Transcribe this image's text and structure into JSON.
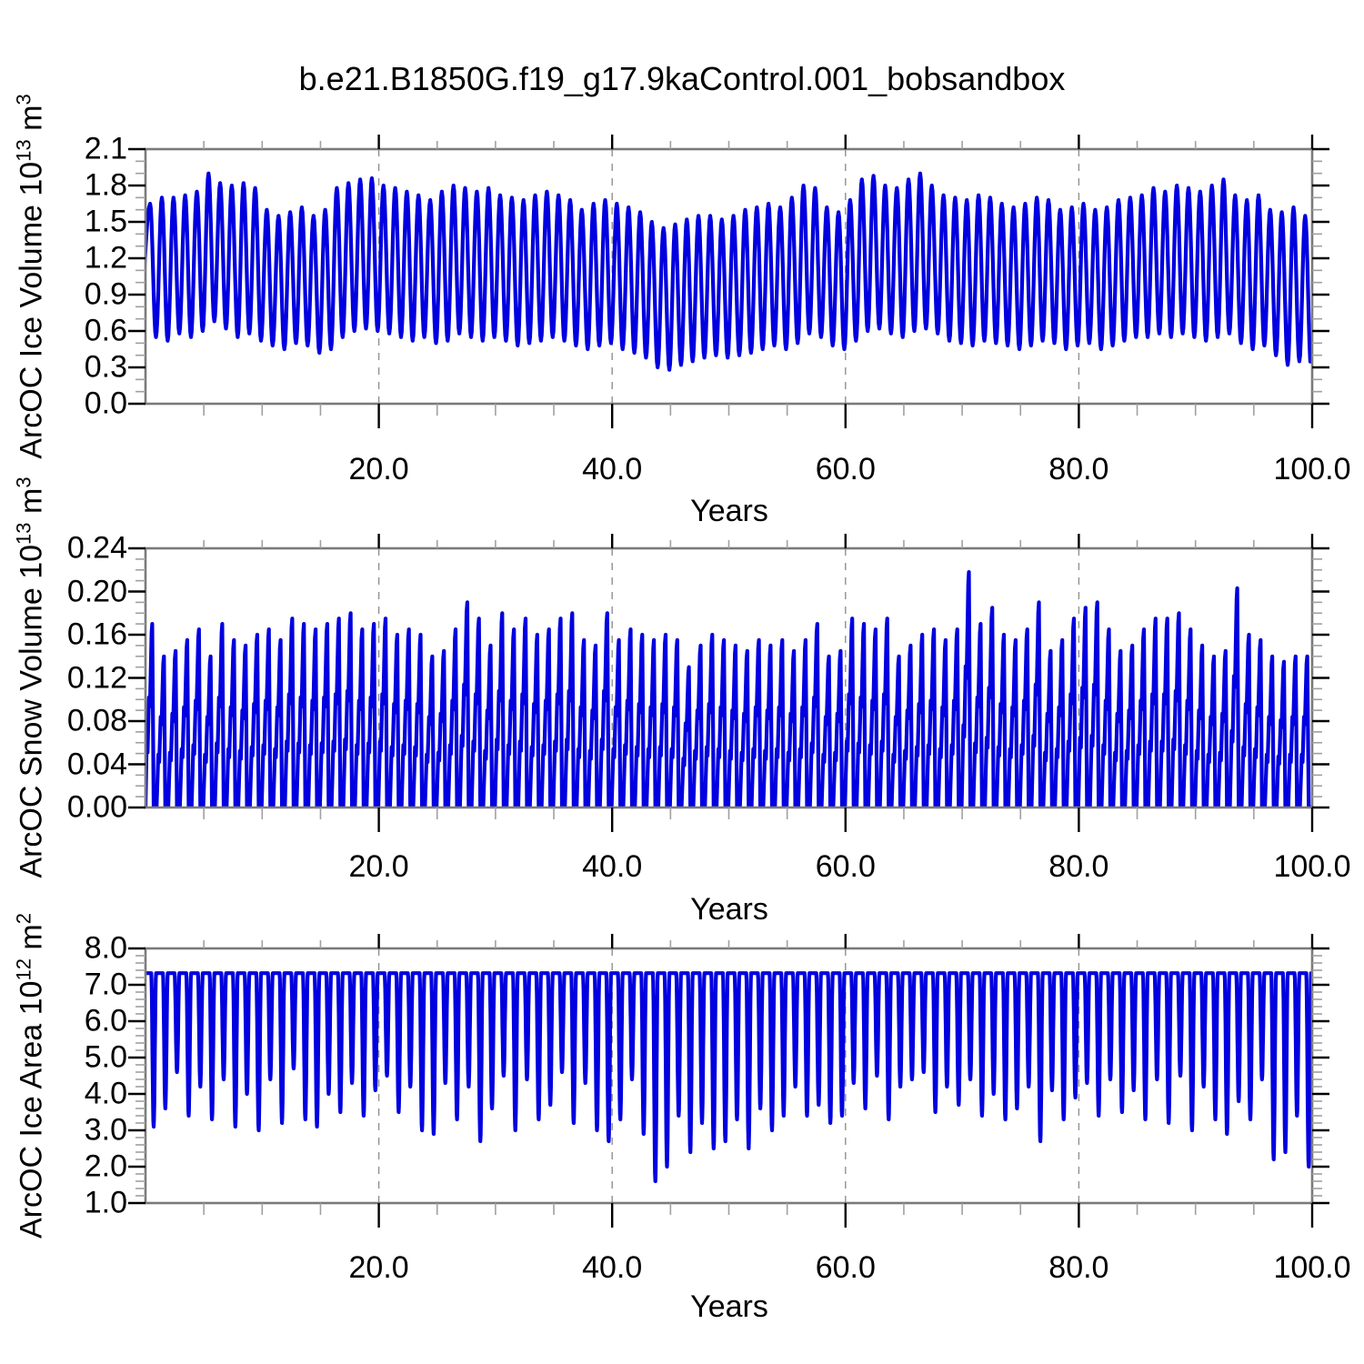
{
  "title": "b.e21.B1850G.f19_g17.9kaControl.001_bobsandbox",
  "style": {
    "line_color": "#0000e0",
    "frame_color": "#7a7a7a",
    "major_tick_color": "#000000",
    "minor_tick_color": "#a0a0a0",
    "grid_color": "#909090"
  },
  "x_axis": {
    "label": "Years",
    "tick_values": [
      20,
      40,
      60,
      80,
      100
    ],
    "tick_labels": [
      "20.0",
      "40.0",
      "60.0",
      "80.0",
      "100.0"
    ],
    "minor_step": 5,
    "grid_values": [
      20,
      40,
      60,
      80
    ],
    "range": [
      0,
      100
    ]
  },
  "chart_data": [
    {
      "type": "line",
      "name": "ArcOC Ice Volume",
      "ylabel": "ArcOC Ice Volume 10^13 m^3",
      "ylabel_parts": {
        "pre": "ArcOC Ice Volume 10",
        "exp": "13",
        "unit": " m",
        "unit_exp": "3"
      },
      "xlabel": "Years",
      "xlim": [
        0,
        100
      ],
      "ylim": [
        0.0,
        2.1
      ],
      "ytick_values": [
        0.0,
        0.3,
        0.6,
        0.9,
        1.2,
        1.5,
        1.8,
        2.1
      ],
      "ytick_labels": [
        "0.0",
        "0.3",
        "0.6",
        "0.9",
        "1.2",
        "1.5",
        "1.8",
        "2.1"
      ],
      "y_minor_divisions": 3,
      "waveform": "seasonal-sine",
      "peak_frac": 0.4,
      "trough_frac": 0.9,
      "annual_max": [
        1.65,
        1.7,
        1.7,
        1.72,
        1.75,
        1.9,
        1.82,
        1.8,
        1.82,
        1.78,
        1.6,
        1.55,
        1.58,
        1.62,
        1.55,
        1.6,
        1.78,
        1.82,
        1.85,
        1.86,
        1.8,
        1.78,
        1.75,
        1.72,
        1.68,
        1.75,
        1.8,
        1.78,
        1.75,
        1.78,
        1.72,
        1.7,
        1.68,
        1.72,
        1.75,
        1.72,
        1.68,
        1.6,
        1.65,
        1.68,
        1.65,
        1.62,
        1.58,
        1.5,
        1.45,
        1.48,
        1.52,
        1.55,
        1.55,
        1.52,
        1.55,
        1.6,
        1.62,
        1.65,
        1.62,
        1.7,
        1.8,
        1.78,
        1.62,
        1.58,
        1.68,
        1.85,
        1.88,
        1.8,
        1.78,
        1.85,
        1.9,
        1.8,
        1.72,
        1.7,
        1.68,
        1.72,
        1.7,
        1.65,
        1.62,
        1.65,
        1.7,
        1.68,
        1.6,
        1.62,
        1.65,
        1.6,
        1.62,
        1.68,
        1.7,
        1.72,
        1.78,
        1.75,
        1.8,
        1.78,
        1.75,
        1.8,
        1.85,
        1.72,
        1.68,
        1.72,
        1.6,
        1.58,
        1.62,
        1.55
      ],
      "annual_min": [
        0.55,
        0.52,
        0.58,
        0.55,
        0.6,
        0.68,
        0.62,
        0.55,
        0.58,
        0.52,
        0.48,
        0.45,
        0.5,
        0.48,
        0.42,
        0.45,
        0.55,
        0.6,
        0.62,
        0.6,
        0.58,
        0.55,
        0.52,
        0.55,
        0.5,
        0.52,
        0.58,
        0.55,
        0.52,
        0.55,
        0.52,
        0.48,
        0.5,
        0.52,
        0.55,
        0.52,
        0.48,
        0.45,
        0.48,
        0.5,
        0.45,
        0.42,
        0.38,
        0.3,
        0.28,
        0.32,
        0.35,
        0.38,
        0.4,
        0.38,
        0.4,
        0.42,
        0.45,
        0.48,
        0.45,
        0.5,
        0.58,
        0.55,
        0.48,
        0.45,
        0.52,
        0.6,
        0.62,
        0.58,
        0.55,
        0.6,
        0.62,
        0.58,
        0.52,
        0.5,
        0.48,
        0.52,
        0.5,
        0.48,
        0.45,
        0.48,
        0.52,
        0.5,
        0.45,
        0.48,
        0.5,
        0.45,
        0.48,
        0.52,
        0.55,
        0.55,
        0.58,
        0.55,
        0.58,
        0.55,
        0.52,
        0.55,
        0.58,
        0.5,
        0.45,
        0.48,
        0.4,
        0.32,
        0.35,
        0.3
      ]
    },
    {
      "type": "line",
      "name": "ArcOC Snow Volume",
      "ylabel": "ArcOC Snow Volume 10^13 m^3",
      "ylabel_parts": {
        "pre": "ArcOC Snow Volume 10",
        "exp": "13",
        "unit": " m",
        "unit_exp": "3"
      },
      "xlabel": "Years",
      "xlim": [
        0,
        100
      ],
      "ylim": [
        0.0,
        0.24
      ],
      "ytick_values": [
        0.0,
        0.04,
        0.08,
        0.12,
        0.16,
        0.2,
        0.24
      ],
      "ytick_labels": [
        "0.00",
        "0.04",
        "0.08",
        "0.12",
        "0.16",
        "0.20",
        "0.24"
      ],
      "y_minor_divisions": 4,
      "waveform": "snow-sawtooth",
      "annual_max": [
        0.17,
        0.14,
        0.145,
        0.155,
        0.165,
        0.14,
        0.17,
        0.155,
        0.15,
        0.16,
        0.165,
        0.155,
        0.175,
        0.17,
        0.165,
        0.17,
        0.175,
        0.18,
        0.165,
        0.17,
        0.175,
        0.16,
        0.165,
        0.16,
        0.14,
        0.145,
        0.165,
        0.19,
        0.175,
        0.15,
        0.18,
        0.165,
        0.175,
        0.16,
        0.165,
        0.175,
        0.18,
        0.155,
        0.15,
        0.18,
        0.155,
        0.165,
        0.16,
        0.155,
        0.16,
        0.155,
        0.13,
        0.15,
        0.16,
        0.155,
        0.15,
        0.145,
        0.155,
        0.15,
        0.155,
        0.145,
        0.155,
        0.17,
        0.14,
        0.145,
        0.175,
        0.17,
        0.165,
        0.175,
        0.14,
        0.15,
        0.16,
        0.165,
        0.155,
        0.165,
        0.218,
        0.17,
        0.185,
        0.16,
        0.155,
        0.165,
        0.19,
        0.145,
        0.155,
        0.175,
        0.185,
        0.19,
        0.165,
        0.145,
        0.15,
        0.165,
        0.175,
        0.175,
        0.18,
        0.165,
        0.15,
        0.14,
        0.145,
        0.203,
        0.16,
        0.155,
        0.14,
        0.135,
        0.14,
        0.14
      ],
      "annual_min": [
        0,
        0,
        0,
        0,
        0,
        0,
        0,
        0,
        0,
        0,
        0,
        0,
        0,
        0,
        0,
        0,
        0,
        0,
        0,
        0,
        0,
        0,
        0,
        0,
        0,
        0,
        0,
        0,
        0,
        0,
        0,
        0,
        0,
        0,
        0,
        0,
        0,
        0,
        0,
        0,
        0,
        0,
        0,
        0,
        0,
        0,
        0,
        0,
        0,
        0,
        0,
        0,
        0,
        0,
        0,
        0,
        0,
        0,
        0,
        0,
        0,
        0,
        0,
        0,
        0,
        0,
        0,
        0,
        0,
        0,
        0,
        0,
        0,
        0,
        0,
        0,
        0,
        0,
        0,
        0,
        0,
        0,
        0,
        0,
        0,
        0,
        0,
        0,
        0,
        0,
        0,
        0,
        0,
        0,
        0,
        0,
        0,
        0,
        0,
        0
      ]
    },
    {
      "type": "line",
      "name": "ArcOC Ice Area",
      "ylabel": "ArcOC Ice Area 10^12 m^2",
      "ylabel_parts": {
        "pre": "ArcOC Ice Area 10",
        "exp": "12",
        "unit": " m",
        "unit_exp": "2"
      },
      "xlabel": "Years",
      "xlim": [
        0,
        100
      ],
      "ylim": [
        1.0,
        8.0
      ],
      "ytick_values": [
        1.0,
        2.0,
        3.0,
        4.0,
        5.0,
        6.0,
        7.0,
        8.0
      ],
      "ytick_labels": [
        "1.0",
        "2.0",
        "3.0",
        "4.0",
        "5.0",
        "6.0",
        "7.0",
        "8.0"
      ],
      "y_minor_divisions": 5,
      "waveform": "plateau-dip",
      "plateau_max": 7.32,
      "annual_min": [
        3.1,
        3.6,
        4.6,
        3.4,
        4.2,
        3.3,
        4.4,
        3.1,
        4.0,
        3.0,
        4.4,
        3.2,
        4.7,
        3.3,
        3.1,
        4.0,
        3.5,
        4.3,
        3.4,
        4.1,
        4.5,
        3.5,
        4.2,
        3.0,
        2.9,
        4.3,
        3.3,
        4.2,
        2.7,
        3.6,
        4.5,
        3.0,
        4.4,
        3.3,
        3.7,
        4.6,
        3.2,
        4.3,
        3.0,
        2.7,
        3.3,
        4.4,
        2.9,
        1.6,
        2.0,
        3.4,
        2.4,
        3.2,
        2.5,
        2.7,
        3.3,
        2.5,
        3.6,
        3.0,
        3.4,
        4.2,
        3.4,
        3.7,
        3.2,
        3.4,
        4.3,
        3.6,
        4.5,
        3.3,
        4.2,
        4.4,
        4.6,
        3.5,
        4.2,
        3.7,
        4.4,
        3.4,
        4.0,
        3.3,
        3.6,
        4.2,
        2.7,
        4.1,
        3.3,
        3.9,
        4.3,
        3.4,
        4.4,
        3.5,
        4.1,
        3.3,
        4.4,
        3.2,
        4.5,
        3.0,
        4.2,
        3.3,
        2.9,
        3.8,
        3.3,
        4.4,
        2.2,
        2.4,
        3.4,
        2.0
      ]
    }
  ]
}
